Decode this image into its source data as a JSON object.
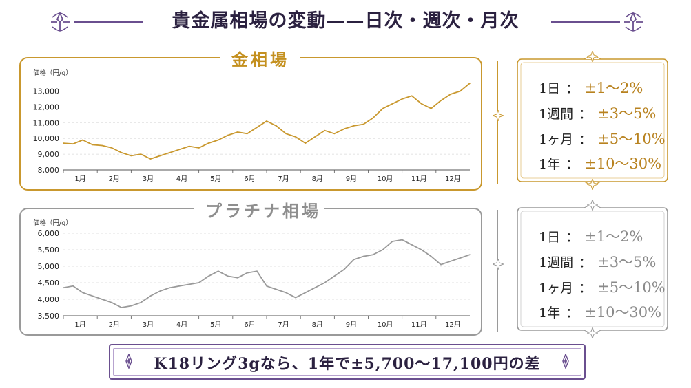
{
  "page": {
    "title": "貴金属相場の変動——日次・週次・月次"
  },
  "gold": {
    "label": "金相場",
    "ranges": [
      {
        "label": "1日",
        "value": "±1〜2%"
      },
      {
        "label": "1週間",
        "value": "±3〜5%"
      },
      {
        "label": "1ヶ月",
        "value": "±5〜10%"
      },
      {
        "label": "1年",
        "value": "±10〜30%"
      }
    ]
  },
  "platinum": {
    "label": "プラチナ相場",
    "ranges": [
      {
        "label": "1日",
        "value": "±1〜2%"
      },
      {
        "label": "1週間",
        "value": "±3〜5%"
      },
      {
        "label": "1ヶ月",
        "value": "±5〜10%"
      },
      {
        "label": "1年",
        "value": "±10〜30%"
      }
    ]
  },
  "footer": {
    "text": "K18リング3gなら、1年で±5,700〜17,100円の差"
  },
  "colors": {
    "gold": "#c9982e",
    "gray": "#9a9a9a",
    "purple": "#6a4f8f",
    "dark": "#2b2140"
  },
  "chart_data": [
    {
      "type": "line",
      "title": "金相場",
      "ylabel": "価格（円/g）",
      "ylim": [
        8000,
        13500
      ],
      "yticks": [
        "8,000",
        "9,000",
        "10,000",
        "11,000",
        "12,000",
        "13,000"
      ],
      "ytick_values": [
        8000,
        9000,
        10000,
        11000,
        12000,
        13000
      ],
      "categories": [
        "1月",
        "2月",
        "3月",
        "4月",
        "5月",
        "6月",
        "7月",
        "8月",
        "9月",
        "10月",
        "11月",
        "12月"
      ],
      "grid": true,
      "color": "#c9982e",
      "x": [
        0,
        0.3,
        0.6,
        0.9,
        1.2,
        1.5,
        1.8,
        2.1,
        2.4,
        2.7,
        3.0,
        3.3,
        3.6,
        3.9,
        4.2,
        4.5,
        4.8,
        5.1,
        5.4,
        5.7,
        6.0,
        6.3,
        6.6,
        6.9,
        7.2,
        7.5,
        7.8,
        8.1,
        8.4,
        8.7,
        9.0,
        9.3,
        9.6,
        9.9,
        10.2,
        10.5,
        10.8,
        11.1,
        11.4,
        11.7,
        12.0,
        12.3,
        12.6
      ],
      "values": [
        9700,
        9650,
        9900,
        9600,
        9550,
        9400,
        9100,
        8900,
        9000,
        8700,
        8900,
        9100,
        9300,
        9500,
        9400,
        9700,
        9900,
        10200,
        10400,
        10300,
        10700,
        11100,
        10800,
        10300,
        10100,
        9700,
        10100,
        10500,
        10300,
        10600,
        10800,
        10900,
        11300,
        11900,
        12200,
        12500,
        12700,
        12200,
        11900,
        12400,
        12800,
        13000,
        13500
      ]
    },
    {
      "type": "line",
      "title": "プラチナ相場",
      "ylabel": "価格（円/g）",
      "ylim": [
        3500,
        6000
      ],
      "yticks": [
        "3,500",
        "4,000",
        "4,500",
        "5,000",
        "5,500",
        "6,000"
      ],
      "ytick_values": [
        3500,
        4000,
        4500,
        5000,
        5500,
        6000
      ],
      "categories": [
        "1月",
        "2月",
        "3月",
        "4月",
        "5月",
        "6月",
        "7月",
        "8月",
        "9月",
        "10月",
        "11月",
        "12月"
      ],
      "grid": true,
      "color": "#9a9a9a",
      "x": [
        0,
        0.3,
        0.6,
        0.9,
        1.2,
        1.5,
        1.8,
        2.1,
        2.4,
        2.7,
        3.0,
        3.3,
        3.6,
        3.9,
        4.2,
        4.5,
        4.8,
        5.1,
        5.4,
        5.7,
        6.0,
        6.3,
        6.6,
        6.9,
        7.2,
        7.5,
        7.8,
        8.1,
        8.4,
        8.7,
        9.0,
        9.3,
        9.6,
        9.9,
        10.2,
        10.5,
        10.8,
        11.1,
        11.4,
        11.7,
        12.0,
        12.3,
        12.6
      ],
      "values": [
        4350,
        4400,
        4200,
        4100,
        4000,
        3900,
        3750,
        3800,
        3900,
        4100,
        4250,
        4350,
        4400,
        4450,
        4500,
        4700,
        4850,
        4700,
        4650,
        4800,
        4850,
        4400,
        4300,
        4200,
        4050,
        4200,
        4350,
        4500,
        4700,
        4900,
        5200,
        5300,
        5350,
        5500,
        5750,
        5800,
        5650,
        5500,
        5300,
        5050,
        5150,
        5250,
        5350
      ]
    }
  ]
}
